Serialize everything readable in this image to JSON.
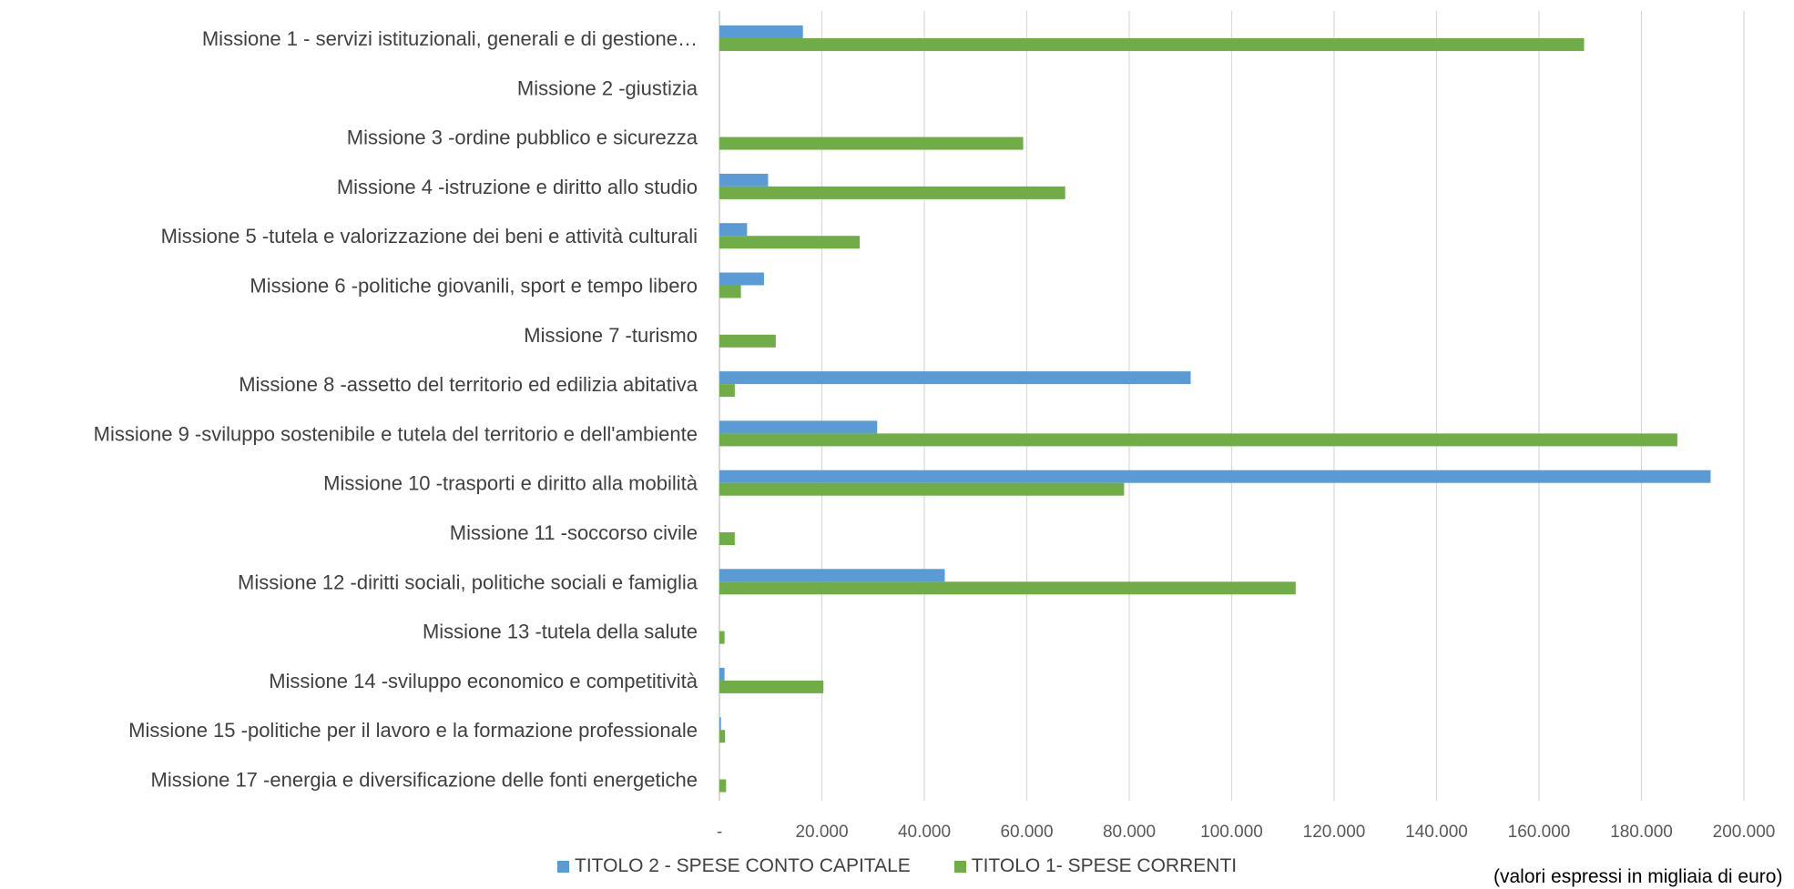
{
  "colors": {
    "capitale": "#5b9bd5",
    "correnti": "#70ad47",
    "grid": "#d9d9d9",
    "axis": "#bfbfbf"
  },
  "legend": {
    "capitale": "TITOLO 2 - SPESE CONTO CAPITALE",
    "correnti": "TITOLO 1- SPESE CORRENTI"
  },
  "note": "(valori espressi in migliaia di euro)",
  "chart_data": {
    "type": "bar",
    "orientation": "horizontal",
    "categories": [
      "Missione 1 - servizi istituzionali, generali e di gestione…",
      "Missione 2 -giustizia",
      "Missione 3 -ordine pubblico e sicurezza",
      "Missione 4 -istruzione e diritto allo studio",
      "Missione 5 -tutela e valorizzazione dei beni e attività culturali",
      "Missione 6 -politiche giovanili, sport e tempo libero",
      "Missione 7 -turismo",
      "Missione 8 -assetto del territorio ed edilizia abitativa",
      "Missione 9 -sviluppo sostenibile e tutela del territorio e dell'ambiente",
      "Missione 10 -trasporti e diritto alla mobilità",
      "Missione 11 -soccorso civile",
      "Missione 12 -diritti sociali, politiche sociali e famiglia",
      "Missione 13 -tutela della salute",
      "Missione 14 -sviluppo economico e competitività",
      "Missione 15 -politiche per il lavoro e la formazione professionale",
      "Missione 17 -energia e diversificazione delle fonti energetiche"
    ],
    "series": [
      {
        "name": "TITOLO 2 - SPESE CONTO CAPITALE",
        "key": "capitale",
        "values": [
          16300,
          0,
          0,
          9500,
          5400,
          8700,
          0,
          92000,
          30800,
          193500,
          0,
          44000,
          0,
          1000,
          300,
          0
        ]
      },
      {
        "name": "TITOLO 1- SPESE CORRENTI",
        "key": "correnti",
        "values": [
          168800,
          0,
          59300,
          67500,
          27400,
          4200,
          11000,
          3000,
          187000,
          79000,
          3000,
          112500,
          1000,
          20300,
          1100,
          1300
        ]
      }
    ],
    "xlim": [
      0,
      200000
    ],
    "ticks": [
      0,
      20000,
      40000,
      60000,
      80000,
      100000,
      120000,
      140000,
      160000,
      180000,
      200000
    ],
    "tick_labels": [
      "-",
      "20.000",
      "40.000",
      "60.000",
      "80.000",
      "100.000",
      "120.000",
      "140.000",
      "160.000",
      "180.000",
      "200.000"
    ],
    "grid": true,
    "legend_position": "bottom"
  }
}
